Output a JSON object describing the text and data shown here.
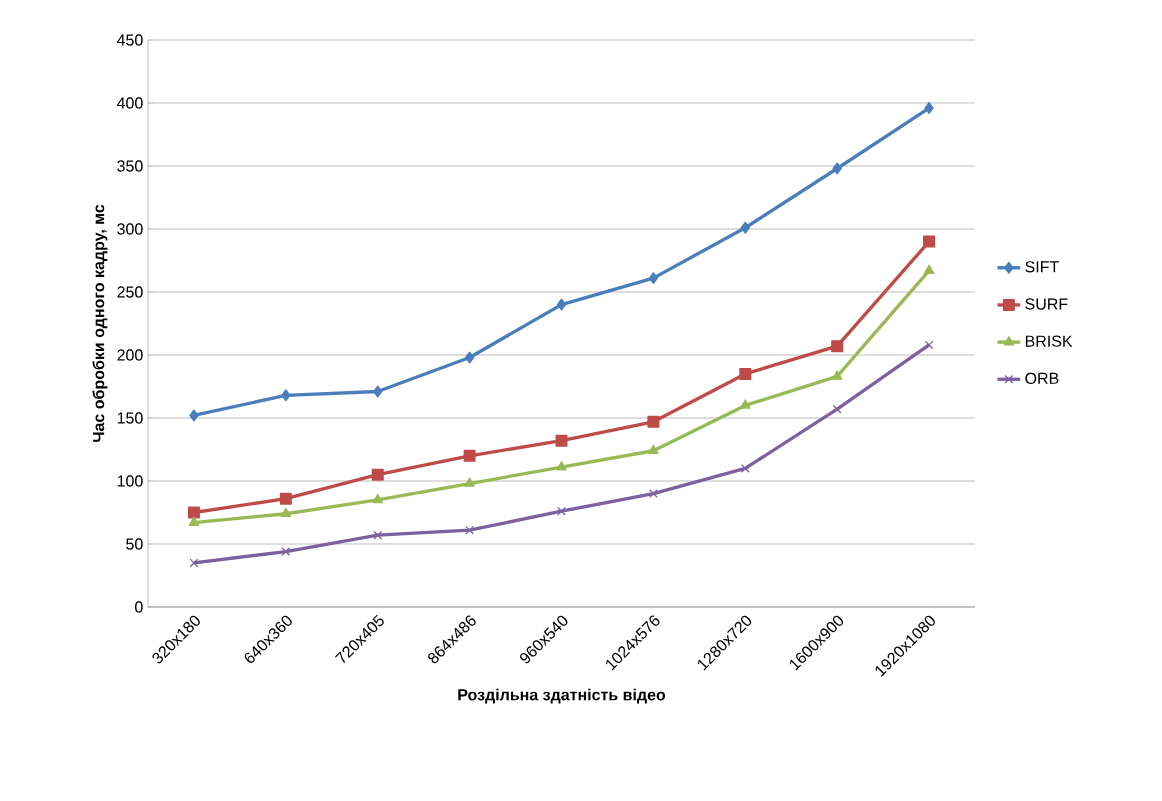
{
  "chart_data": {
    "type": "line",
    "xlabel": "Роздільна здатність відео",
    "ylabel": "Час обробки одного кадру, мс",
    "categories": [
      "320x180",
      "640x360",
      "720x405",
      "864x486",
      "960x540",
      "1024x576",
      "1280x720",
      "1600x900",
      "1920x1080"
    ],
    "series": [
      {
        "name": "SIFT",
        "color": "#4a7ebb",
        "marker": "diamond",
        "values": [
          152,
          168,
          171,
          198,
          240,
          261,
          301,
          348,
          396
        ]
      },
      {
        "name": "SURF",
        "color": "#be4b48",
        "marker": "square",
        "values": [
          75,
          86,
          105,
          120,
          132,
          147,
          185,
          207,
          290
        ]
      },
      {
        "name": "BRISK",
        "color": "#98b954",
        "marker": "triangle",
        "values": [
          67,
          74,
          85,
          98,
          111,
          124,
          160,
          183,
          267
        ]
      },
      {
        "name": "ORB",
        "color": "#7d60a0",
        "marker": "cross",
        "values": [
          35,
          44,
          57,
          61,
          76,
          90,
          110,
          157,
          208
        ]
      }
    ],
    "ylim": [
      0,
      450
    ],
    "yticks": [
      0,
      50,
      100,
      150,
      200,
      250,
      300,
      350,
      400,
      450
    ],
    "grid": "y",
    "legend": "right",
    "line_style": "solid"
  }
}
